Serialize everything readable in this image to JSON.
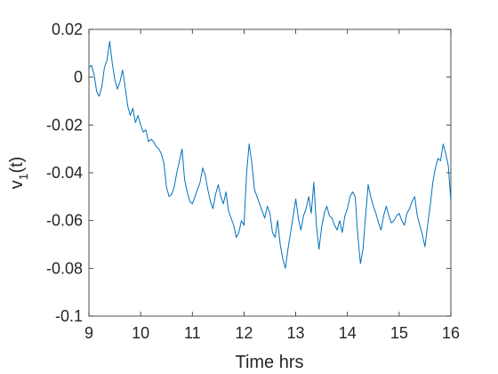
{
  "chart_data": {
    "type": "line",
    "title": "",
    "xlabel": "Time hrs",
    "ylabel_main": "v",
    "ylabel_sub": "1",
    "ylabel_suffix": "(t)",
    "xlim": [
      9,
      16
    ],
    "ylim": [
      -0.1,
      0.02
    ],
    "xticks": [
      9,
      10,
      11,
      12,
      13,
      14,
      15,
      16
    ],
    "xtick_labels": [
      "9",
      "10",
      "11",
      "12",
      "13",
      "14",
      "15",
      "16"
    ],
    "yticks": [
      0.02,
      0,
      -0.02,
      -0.04,
      -0.06,
      -0.08,
      -0.1
    ],
    "ytick_labels": [
      "0.02",
      "0",
      "-0.02",
      "-0.04",
      "-0.06",
      "-0.08",
      "-0.1"
    ],
    "grid": false,
    "series": [
      {
        "color": "#0072BD",
        "x": [
          9.0,
          9.05,
          9.1,
          9.15,
          9.2,
          9.25,
          9.3,
          9.35,
          9.4,
          9.45,
          9.5,
          9.55,
          9.6,
          9.65,
          9.7,
          9.75,
          9.8,
          9.85,
          9.9,
          9.95,
          10.0,
          10.05,
          10.1,
          10.15,
          10.2,
          10.25,
          10.3,
          10.35,
          10.4,
          10.45,
          10.5,
          10.55,
          10.6,
          10.65,
          10.7,
          10.75,
          10.8,
          10.85,
          10.9,
          10.95,
          11.0,
          11.05,
          11.1,
          11.15,
          11.2,
          11.25,
          11.3,
          11.35,
          11.4,
          11.45,
          11.5,
          11.55,
          11.6,
          11.65,
          11.7,
          11.75,
          11.8,
          11.85,
          11.9,
          11.95,
          12.0,
          12.05,
          12.1,
          12.15,
          12.2,
          12.25,
          12.3,
          12.35,
          12.4,
          12.45,
          12.5,
          12.55,
          12.6,
          12.65,
          12.7,
          12.75,
          12.8,
          12.85,
          12.9,
          12.95,
          13.0,
          13.05,
          13.1,
          13.15,
          13.2,
          13.25,
          13.3,
          13.35,
          13.4,
          13.45,
          13.5,
          13.55,
          13.6,
          13.65,
          13.7,
          13.75,
          13.8,
          13.85,
          13.9,
          13.95,
          14.0,
          14.05,
          14.1,
          14.15,
          14.2,
          14.25,
          14.3,
          14.35,
          14.4,
          14.45,
          14.5,
          14.55,
          14.6,
          14.65,
          14.7,
          14.75,
          14.8,
          14.85,
          14.9,
          14.95,
          15.0,
          15.05,
          15.1,
          15.15,
          15.2,
          15.25,
          15.3,
          15.35,
          15.4,
          15.45,
          15.5,
          15.55,
          15.6,
          15.65,
          15.7,
          15.75,
          15.8,
          15.85,
          15.9,
          15.95,
          16.0
        ],
        "y": [
          0.004,
          0.005,
          0.001,
          -0.006,
          -0.008,
          -0.004,
          0.004,
          0.007,
          0.015,
          0.006,
          -0.001,
          -0.005,
          -0.002,
          0.003,
          -0.004,
          -0.012,
          -0.016,
          -0.013,
          -0.019,
          -0.016,
          -0.02,
          -0.023,
          -0.022,
          -0.027,
          -0.026,
          -0.027,
          -0.029,
          -0.03,
          -0.032,
          -0.036,
          -0.046,
          -0.05,
          -0.049,
          -0.046,
          -0.04,
          -0.035,
          -0.03,
          -0.043,
          -0.048,
          -0.052,
          -0.053,
          -0.05,
          -0.047,
          -0.044,
          -0.038,
          -0.041,
          -0.047,
          -0.052,
          -0.055,
          -0.049,
          -0.045,
          -0.05,
          -0.053,
          -0.048,
          -0.056,
          -0.059,
          -0.062,
          -0.067,
          -0.065,
          -0.06,
          -0.062,
          -0.04,
          -0.028,
          -0.036,
          -0.047,
          -0.05,
          -0.053,
          -0.056,
          -0.059,
          -0.054,
          -0.057,
          -0.065,
          -0.067,
          -0.06,
          -0.07,
          -0.076,
          -0.08,
          -0.072,
          -0.065,
          -0.058,
          -0.051,
          -0.059,
          -0.064,
          -0.058,
          -0.055,
          -0.05,
          -0.057,
          -0.044,
          -0.062,
          -0.072,
          -0.063,
          -0.057,
          -0.054,
          -0.058,
          -0.059,
          -0.062,
          -0.064,
          -0.06,
          -0.065,
          -0.058,
          -0.055,
          -0.05,
          -0.048,
          -0.05,
          -0.066,
          -0.078,
          -0.072,
          -0.058,
          -0.045,
          -0.05,
          -0.054,
          -0.057,
          -0.061,
          -0.064,
          -0.058,
          -0.054,
          -0.058,
          -0.061,
          -0.06,
          -0.058,
          -0.057,
          -0.06,
          -0.062,
          -0.057,
          -0.055,
          -0.052,
          -0.05,
          -0.058,
          -0.062,
          -0.066,
          -0.071,
          -0.062,
          -0.054,
          -0.044,
          -0.038,
          -0.034,
          -0.035,
          -0.028,
          -0.032,
          -0.037,
          -0.052
        ]
      }
    ]
  }
}
